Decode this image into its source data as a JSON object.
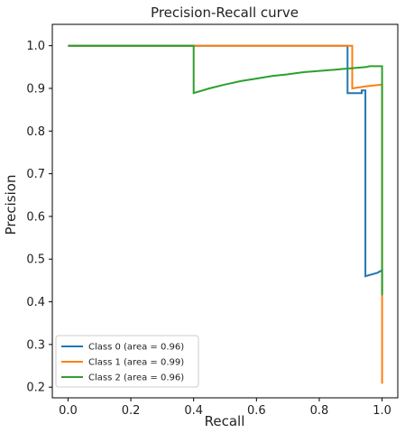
{
  "chart_data": {
    "type": "line",
    "title": "Precision-Recall curve",
    "xlabel": "Recall",
    "ylabel": "Precision",
    "xlim": [
      -0.05,
      1.05
    ],
    "ylim": [
      0.175,
      1.05
    ],
    "xticks": [
      "0.0",
      "0.2",
      "0.4",
      "0.6",
      "0.8",
      "1.0"
    ],
    "yticks": [
      "0.2",
      "0.3",
      "0.4",
      "0.5",
      "0.6",
      "0.7",
      "0.8",
      "0.9",
      "1.0"
    ],
    "grid": false,
    "legend_position": "lower-left",
    "series": [
      {
        "name": "Class 0 (area = 0.96)",
        "color": "#1f77b4",
        "x": [
          0.0,
          0.89,
          0.89,
          0.935,
          0.935,
          0.947,
          0.947,
          0.985,
          1.0,
          1.0
        ],
        "y": [
          1.0,
          1.0,
          0.889,
          0.889,
          0.895,
          0.895,
          0.46,
          0.468,
          0.474,
          0.42
        ]
      },
      {
        "name": "Class 1 (area = 0.99)",
        "color": "#ff7f0e",
        "x": [
          0.0,
          0.895,
          0.905,
          0.905,
          0.95,
          1.0,
          1.0
        ],
        "y": [
          1.0,
          1.0,
          1.0,
          0.9,
          0.905,
          0.909,
          0.208
        ]
      },
      {
        "name": "Class 2 (area = 0.96)",
        "color": "#2ca02c",
        "x": [
          0.0,
          0.4,
          0.4,
          0.45,
          0.5,
          0.55,
          0.6,
          0.65,
          0.7,
          0.75,
          0.8,
          0.85,
          0.9,
          0.95,
          0.96,
          1.0,
          1.0
        ],
        "y": [
          1.0,
          1.0,
          0.889,
          0.9,
          0.909,
          0.917,
          0.923,
          0.929,
          0.933,
          0.938,
          0.941,
          0.944,
          0.947,
          0.95,
          0.952,
          0.952,
          0.415
        ]
      }
    ]
  }
}
